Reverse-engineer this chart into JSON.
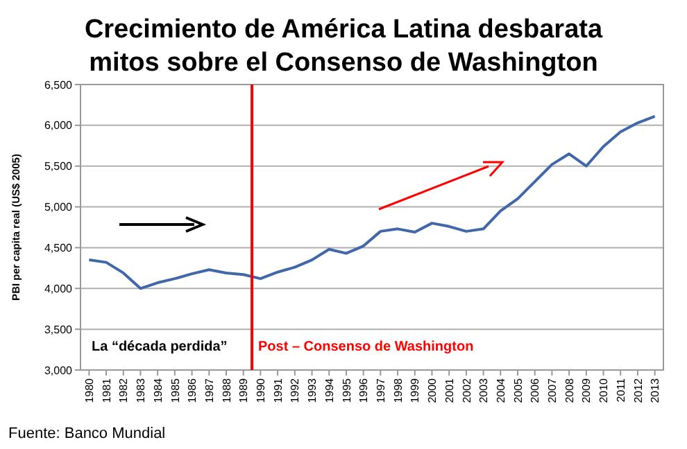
{
  "chart_data": {
    "type": "line",
    "title": "Crecimiento de América Latina desbarata mitos sobre el Consenso de Washington",
    "ylabel": "PBI per capita real (US$ 2005)",
    "x": [
      1980,
      1981,
      1982,
      1983,
      1984,
      1985,
      1986,
      1987,
      1988,
      1989,
      1990,
      1991,
      1992,
      1993,
      1994,
      1995,
      1996,
      1997,
      1998,
      1999,
      2000,
      2001,
      2002,
      2003,
      2004,
      2005,
      2006,
      2007,
      2008,
      2009,
      2010,
      2011,
      2012,
      2013
    ],
    "series": [
      {
        "color": "#4068a8",
        "values": [
          4350,
          4320,
          4190,
          4000,
          4070,
          4120,
          4180,
          4230,
          4190,
          4170,
          4120,
          4200,
          4260,
          4350,
          4480,
          4430,
          4520,
          4700,
          4730,
          4690,
          4800,
          4760,
          4700,
          4730,
          4950,
          5100,
          5310,
          5520,
          5650,
          5500,
          5740,
          5920,
          6030,
          6110
        ]
      }
    ],
    "xlim": [
      1979.5,
      2013.5
    ],
    "xticks": [
      1980,
      1981,
      1982,
      1983,
      1984,
      1985,
      1986,
      1987,
      1988,
      1989,
      1990,
      1991,
      1992,
      1993,
      1994,
      1995,
      1996,
      1997,
      1998,
      1999,
      2000,
      2001,
      2002,
      2003,
      2004,
      2005,
      2006,
      2007,
      2008,
      2009,
      2010,
      2011,
      2012,
      2013
    ],
    "ylim": [
      3000,
      6500
    ],
    "yticks": [
      {
        "value": 3000,
        "label": "3,000"
      },
      {
        "value": 3500,
        "label": "3,500"
      },
      {
        "value": 4000,
        "label": "4,000"
      },
      {
        "value": 4500,
        "label": "4,500"
      },
      {
        "value": 5000,
        "label": "5,000"
      },
      {
        "value": 5500,
        "label": "5,500"
      },
      {
        "value": 6000,
        "label": "6,000"
      },
      {
        "value": 6500,
        "label": "6,500"
      }
    ],
    "grid": "y",
    "marker": "none",
    "line_style": "solid",
    "ref_lines": [
      {
        "axis": "x",
        "value": 1989.5,
        "color": "#ff0000"
      }
    ],
    "annotations": [
      "La “década perdida”",
      "Post – Consenso de Washington",
      "Fuente: Banco Mundial"
    ]
  }
}
